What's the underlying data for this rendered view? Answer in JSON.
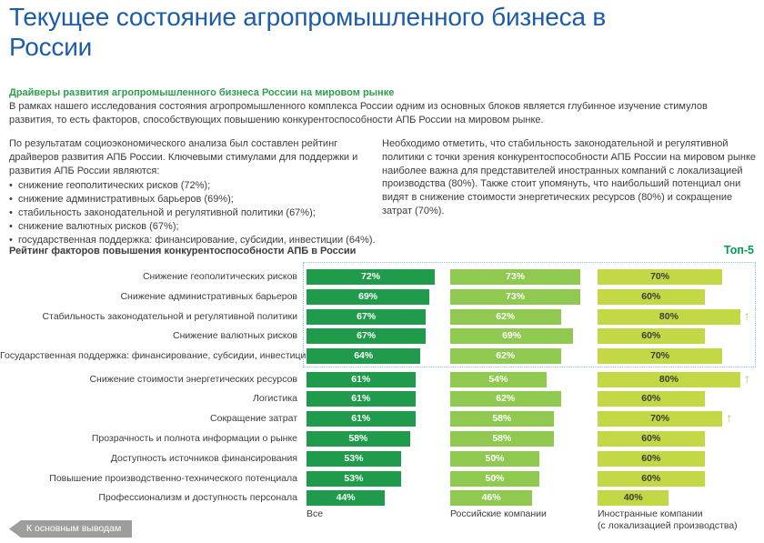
{
  "page": {
    "title": "Текущее состояние агропромышленного бизнеса в России",
    "section_heading": "Драйверы развития агропромышленного бизнеса России на мировом рынке",
    "intro": "В рамках нашего исследования состояния агропромышленного комплекса России одним из основных блоков является глубинное изучение стимулов развития, то есть факторов, способствующих повышению конкурентоспособности АПБ России на мировом рынке.",
    "left_column": {
      "intro": "По результатам социоэкономического анализа был составлен рейтинг драйверов развития АПБ России. Ключевыми стимулами для поддержки и развития АПБ России являются:",
      "bullets": [
        "снижение геополитических рисков (72%);",
        "снижение административных барьеров (69%);",
        "стабильность законодательной и регулятивной политики (67%);",
        "снижение валютных рисков (67%);",
        "государственная поддержка: финансирование, субсидии, инвестиции (64%)."
      ]
    },
    "right_column": {
      "text": "Необходимо отметить, что стабильность законодательной и регулятивной политики с точки зрения конкурентоспособности АПБ России на мировом рынке наиболее важна для представителей иностранных компаний с локализацией производства (80%). Также стоит упомянуть, что наибольший потенциал они видят в снижение стоимости энергетических ресурсов (80%) и сокращение затрат (70%)."
    },
    "footer_button": "К основным выводам"
  },
  "chart_data": {
    "type": "bar",
    "orientation": "horizontal",
    "title": "Рейтинг факторов повышения конкурентоспособности АПБ в России",
    "top_badge": "Топ-5",
    "top5_rows": 5,
    "unit": "%",
    "xlim": [
      0,
      100
    ],
    "categories": [
      "Снижение геополитических рисков",
      "Снижение административных барьеров",
      "Стабильность законодательной и регулятивной политики",
      "Снижение валютных рисков",
      "Государственная поддержка: финансирование, субсидии, инвестиции",
      "Снижение стоимости энергетических ресурсов",
      "Логистика",
      "Сокращение затрат",
      "Прозрачность и полнота информации о рынке",
      "Доступность источников финансирования",
      "Повышение производственно-технического потенциала",
      "Профессионализм и доступность персонала"
    ],
    "series": [
      {
        "name": "Все",
        "color": "#1F9B4B",
        "text_color": "#FFFFFF",
        "values": [
          72,
          69,
          67,
          67,
          64,
          61,
          61,
          61,
          58,
          53,
          53,
          44
        ],
        "arrow_rows": []
      },
      {
        "name": "Российские компании",
        "color": "#8FC94F",
        "text_color": "#FFFFFF",
        "values": [
          73,
          73,
          62,
          69,
          62,
          54,
          62,
          58,
          58,
          50,
          50,
          46
        ],
        "arrow_rows": []
      },
      {
        "name": "Иностранные компании (с локализацией производства)",
        "color": "#C3D844",
        "text_color": "#3C3C3B",
        "values": [
          70,
          60,
          80,
          60,
          70,
          80,
          60,
          70,
          60,
          60,
          60,
          40
        ],
        "arrow_rows": [
          2,
          5,
          7
        ]
      }
    ],
    "axis_labels": [
      {
        "line1": "Все",
        "line2": ""
      },
      {
        "line1": "Российские компании",
        "line2": ""
      },
      {
        "line1": "Иностранные компании",
        "line2": "(с локализацией производства)"
      }
    ]
  },
  "colors": {
    "title_blue": "#1C5CA8",
    "heading_green": "#2E9E4F",
    "badge_green": "#009C4E",
    "bar_dark_green": "#1F9B4B",
    "bar_light_green": "#8FC94F",
    "bar_yellow_green": "#C3D844",
    "arrow_green": "#A9CE47",
    "button_gray": "#9D9D9C",
    "dotted_box_blue": "#8FBFD6",
    "body_text": "#3C3C3B"
  }
}
